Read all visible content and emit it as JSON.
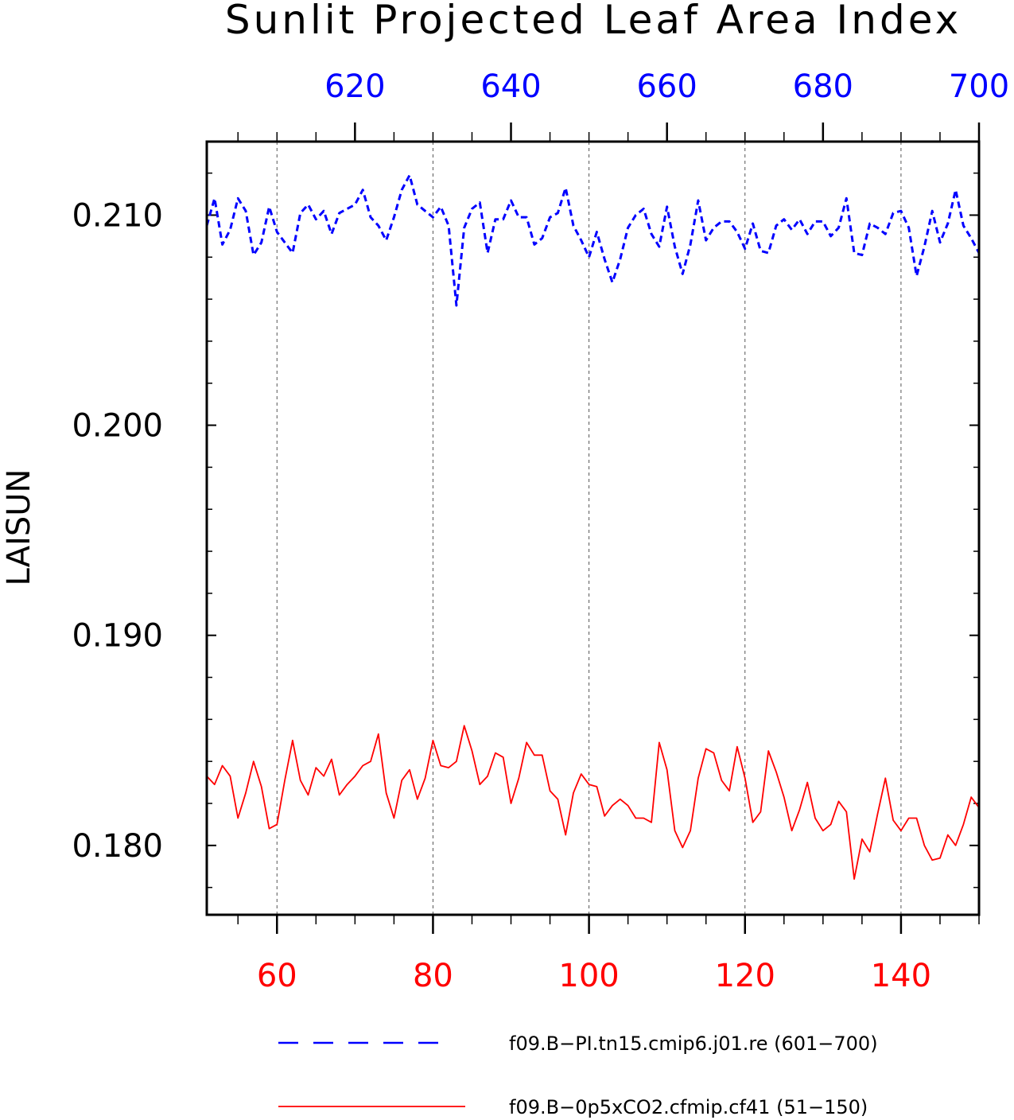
{
  "title": "Sunlit Projected Leaf Area Index",
  "chart_data": {
    "type": "line",
    "title": "Sunlit Projected Leaf Area Index",
    "ylabel": "LAISUN",
    "ylim": [
      0.1767,
      0.2135
    ],
    "y_ticks": [
      "0.180",
      "0.190",
      "0.200",
      "0.210"
    ],
    "grid": "vertical dashed lines at major x ticks",
    "top_axis": {
      "color": "#0000ff",
      "range": [
        601,
        700
      ],
      "ticks": [
        "620",
        "640",
        "660",
        "680",
        "700"
      ]
    },
    "bottom_axis": {
      "color": "#ff0000",
      "range": [
        51,
        150
      ],
      "ticks": [
        "60",
        "80",
        "100",
        "120",
        "140"
      ]
    },
    "series": [
      {
        "name": "f09.B−PI.tn15.cmip6.j01.re (601−700)",
        "axis": "top",
        "color": "#0000ff",
        "style": "dashed",
        "x_start": 601,
        "values": [
          0.2095,
          0.2108,
          0.2086,
          0.2093,
          0.2108,
          0.2102,
          0.2081,
          0.2087,
          0.2104,
          0.2092,
          0.2087,
          0.2082,
          0.2101,
          0.2105,
          0.2098,
          0.2102,
          0.2091,
          0.2101,
          0.2103,
          0.2105,
          0.2112,
          0.2099,
          0.2095,
          0.2088,
          0.2099,
          0.2112,
          0.2119,
          0.2105,
          0.2102,
          0.2099,
          0.2104,
          0.2095,
          0.2057,
          0.2094,
          0.2103,
          0.2106,
          0.2082,
          0.2098,
          0.2098,
          0.2107,
          0.2099,
          0.2099,
          0.2086,
          0.2089,
          0.2099,
          0.2101,
          0.2113,
          0.2095,
          0.2088,
          0.208,
          0.2092,
          0.2079,
          0.2068,
          0.2079,
          0.2094,
          0.21,
          0.2103,
          0.2091,
          0.2085,
          0.2104,
          0.2085,
          0.2072,
          0.2086,
          0.2107,
          0.2088,
          0.2094,
          0.2097,
          0.2097,
          0.2092,
          0.2084,
          0.2096,
          0.2083,
          0.2082,
          0.2095,
          0.2098,
          0.2093,
          0.2098,
          0.2091,
          0.2097,
          0.2097,
          0.209,
          0.2094,
          0.2108,
          0.2082,
          0.2081,
          0.2096,
          0.2094,
          0.2091,
          0.2101,
          0.2102,
          0.2094,
          0.2071,
          0.2085,
          0.2102,
          0.2087,
          0.2096,
          0.2112,
          0.2095,
          0.2089,
          0.2082
        ]
      },
      {
        "name": "f09.B−0p5xCO2.cfmip.cf41 (51−150)",
        "axis": "bottom",
        "color": "#ff0000",
        "style": "solid",
        "x_start": 51,
        "values": [
          0.1833,
          0.1829,
          0.1838,
          0.1833,
          0.1813,
          0.1825,
          0.184,
          0.1828,
          0.1808,
          0.181,
          0.1831,
          0.185,
          0.1831,
          0.1824,
          0.1837,
          0.1833,
          0.1841,
          0.1824,
          0.1829,
          0.1833,
          0.1838,
          0.184,
          0.1853,
          0.1825,
          0.1813,
          0.1831,
          0.1836,
          0.1822,
          0.1832,
          0.185,
          0.1838,
          0.1837,
          0.184,
          0.1857,
          0.1845,
          0.1829,
          0.1833,
          0.1844,
          0.1842,
          0.182,
          0.1832,
          0.1849,
          0.1843,
          0.1843,
          0.1826,
          0.1822,
          0.1805,
          0.1825,
          0.1834,
          0.1829,
          0.1828,
          0.1814,
          0.1819,
          0.1822,
          0.1819,
          0.1813,
          0.1813,
          0.1811,
          0.1849,
          0.1836,
          0.1807,
          0.1799,
          0.1807,
          0.1832,
          0.1846,
          0.1844,
          0.1831,
          0.1826,
          0.1847,
          0.1832,
          0.1811,
          0.1816,
          0.1845,
          0.1835,
          0.1823,
          0.1807,
          0.1817,
          0.183,
          0.1813,
          0.1807,
          0.181,
          0.1821,
          0.1816,
          0.1784,
          0.1803,
          0.1797,
          0.1815,
          0.1832,
          0.1812,
          0.1807,
          0.1813,
          0.1813,
          0.18,
          0.1793,
          0.1794,
          0.1805,
          0.18,
          0.181,
          0.1823,
          0.1818
        ]
      }
    ]
  },
  "legend": [
    {
      "label": "f09.B−PI.tn15.cmip6.j01.re (601−700)",
      "color": "#0000ff",
      "style": "dashed"
    },
    {
      "label": "f09.B−0p5xCO2.cfmip.cf41 (51−150)",
      "color": "#ff0000",
      "style": "solid"
    }
  ]
}
